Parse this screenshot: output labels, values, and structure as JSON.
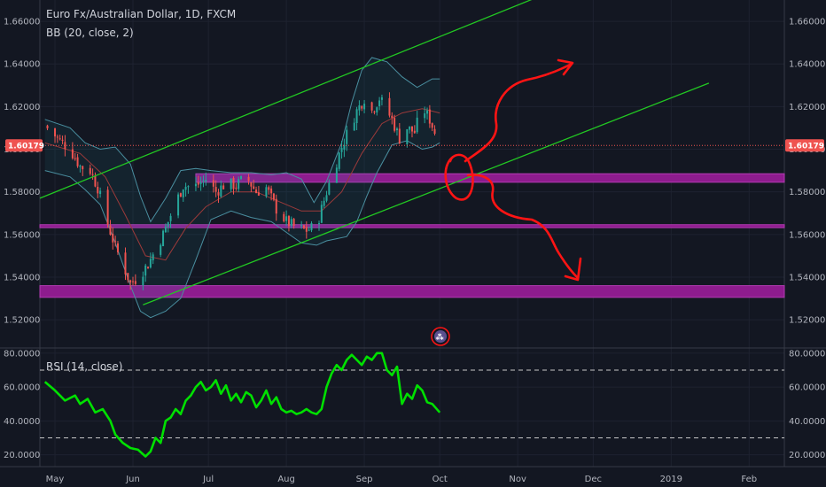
{
  "chart_data": {
    "type": "candlestick",
    "title": "Euro Fx/Australian Dollar, 1D, FXCM",
    "indicator": "BB (20, close, 2)",
    "rsi_label": "RSI (14, close)",
    "y_ticks": [
      "1.66000",
      "1.64000",
      "1.62000",
      "1.60000",
      "1.58000",
      "1.56000",
      "1.54000",
      "1.52000"
    ],
    "y_tick_values": [
      1.66,
      1.64,
      1.62,
      1.6,
      1.58,
      1.56,
      1.54,
      1.52
    ],
    "ylim": [
      1.508,
      1.67
    ],
    "last_price": "1.60179",
    "last_price_value": 1.60179,
    "rsi_ticks": [
      "80.0000",
      "60.0000",
      "40.0000",
      "20.0000"
    ],
    "rsi_tick_values": [
      80,
      60,
      40,
      20
    ],
    "rsi_ylim": [
      13,
      82
    ],
    "rsi_levels": [
      70,
      30
    ],
    "x_labels": [
      "May",
      "Jun",
      "Jul",
      "Aug",
      "Sep",
      "Oct",
      "Nov",
      "Dec",
      "2019",
      "Feb"
    ],
    "x_label_days": [
      0,
      31,
      61,
      92,
      123,
      153,
      184,
      214,
      245,
      276
    ],
    "xlim_days": [
      -6,
      290
    ],
    "last_day": 153,
    "price_path": [
      [
        -4,
        1.611
      ],
      [
        2,
        1.604
      ],
      [
        6,
        1.6
      ],
      [
        10,
        1.592
      ],
      [
        14,
        1.59
      ],
      [
        17,
        1.582
      ],
      [
        21,
        1.565
      ],
      [
        24,
        1.554
      ],
      [
        27,
        1.546
      ],
      [
        30,
        1.537
      ],
      [
        33,
        1.54
      ],
      [
        37,
        1.546
      ],
      [
        40,
        1.553
      ],
      [
        43,
        1.56
      ],
      [
        47,
        1.572
      ],
      [
        51,
        1.583
      ],
      [
        55,
        1.582
      ],
      [
        60,
        1.586
      ],
      [
        64,
        1.58
      ],
      [
        68,
        1.584
      ],
      [
        72,
        1.583
      ],
      [
        76,
        1.587
      ],
      [
        80,
        1.58
      ],
      [
        84,
        1.582
      ],
      [
        88,
        1.572
      ],
      [
        92,
        1.566
      ],
      [
        96,
        1.563
      ],
      [
        100,
        1.562
      ],
      [
        104,
        1.564
      ],
      [
        106,
        1.572
      ],
      [
        108,
        1.58
      ],
      [
        111,
        1.591
      ],
      [
        114,
        1.601
      ],
      [
        117,
        1.61
      ],
      [
        120,
        1.618
      ],
      [
        123,
        1.624
      ],
      [
        126,
        1.618
      ],
      [
        129,
        1.624
      ],
      [
        131,
        1.62
      ],
      [
        134,
        1.614
      ],
      [
        137,
        1.605
      ],
      [
        140,
        1.61
      ],
      [
        143,
        1.608
      ],
      [
        146,
        1.62
      ],
      [
        149,
        1.614
      ],
      [
        151,
        1.608
      ],
      [
        153,
        1.602
      ]
    ],
    "rsi_path": [
      [
        -4,
        63
      ],
      [
        0,
        58
      ],
      [
        4,
        52
      ],
      [
        8,
        55
      ],
      [
        10,
        50
      ],
      [
        13,
        53
      ],
      [
        16,
        45
      ],
      [
        19,
        47
      ],
      [
        22,
        40
      ],
      [
        24,
        32
      ],
      [
        27,
        27
      ],
      [
        30,
        24
      ],
      [
        33,
        23
      ],
      [
        36,
        19
      ],
      [
        38,
        22
      ],
      [
        40,
        30
      ],
      [
        42,
        27
      ],
      [
        44,
        40
      ],
      [
        46,
        42
      ],
      [
        48,
        47
      ],
      [
        50,
        44
      ],
      [
        52,
        52
      ],
      [
        54,
        55
      ],
      [
        56,
        60
      ],
      [
        58,
        63
      ],
      [
        60,
        58
      ],
      [
        62,
        60
      ],
      [
        64,
        64
      ],
      [
        66,
        56
      ],
      [
        68,
        61
      ],
      [
        70,
        52
      ],
      [
        72,
        56
      ],
      [
        74,
        51
      ],
      [
        76,
        57
      ],
      [
        78,
        55
      ],
      [
        80,
        48
      ],
      [
        82,
        52
      ],
      [
        84,
        58
      ],
      [
        86,
        50
      ],
      [
        88,
        54
      ],
      [
        90,
        47
      ],
      [
        92,
        45
      ],
      [
        94,
        46
      ],
      [
        96,
        44
      ],
      [
        98,
        45
      ],
      [
        100,
        47
      ],
      [
        102,
        45
      ],
      [
        104,
        44
      ],
      [
        106,
        47
      ],
      [
        108,
        60
      ],
      [
        110,
        68
      ],
      [
        112,
        73
      ],
      [
        114,
        70
      ],
      [
        116,
        76
      ],
      [
        118,
        79
      ],
      [
        120,
        76
      ],
      [
        122,
        73
      ],
      [
        124,
        78
      ],
      [
        126,
        76
      ],
      [
        128,
        80
      ],
      [
        130,
        80
      ],
      [
        132,
        70
      ],
      [
        134,
        67
      ],
      [
        136,
        72
      ],
      [
        138,
        50
      ],
      [
        140,
        56
      ],
      [
        142,
        53
      ],
      [
        144,
        61
      ],
      [
        146,
        58
      ],
      [
        148,
        51
      ],
      [
        150,
        50
      ],
      [
        153,
        45
      ]
    ],
    "bb_upper": [
      [
        -4,
        1.614
      ],
      [
        6,
        1.61
      ],
      [
        12,
        1.603
      ],
      [
        18,
        1.6
      ],
      [
        24,
        1.601
      ],
      [
        30,
        1.593
      ],
      [
        34,
        1.578
      ],
      [
        38,
        1.566
      ],
      [
        44,
        1.577
      ],
      [
        50,
        1.59
      ],
      [
        56,
        1.591
      ],
      [
        62,
        1.59
      ],
      [
        70,
        1.589
      ],
      [
        78,
        1.589
      ],
      [
        86,
        1.588
      ],
      [
        92,
        1.589
      ],
      [
        98,
        1.586
      ],
      [
        103,
        1.575
      ],
      [
        108,
        1.585
      ],
      [
        114,
        1.603
      ],
      [
        118,
        1.622
      ],
      [
        122,
        1.637
      ],
      [
        126,
        1.643
      ],
      [
        132,
        1.641
      ],
      [
        138,
        1.634
      ],
      [
        144,
        1.629
      ],
      [
        150,
        1.633
      ],
      [
        153,
        1.633
      ]
    ],
    "bb_lower": [
      [
        -4,
        1.59
      ],
      [
        6,
        1.587
      ],
      [
        12,
        1.581
      ],
      [
        18,
        1.574
      ],
      [
        24,
        1.556
      ],
      [
        30,
        1.536
      ],
      [
        34,
        1.524
      ],
      [
        38,
        1.521
      ],
      [
        44,
        1.524
      ],
      [
        50,
        1.53
      ],
      [
        56,
        1.548
      ],
      [
        62,
        1.567
      ],
      [
        70,
        1.571
      ],
      [
        78,
        1.568
      ],
      [
        86,
        1.566
      ],
      [
        92,
        1.561
      ],
      [
        98,
        1.556
      ],
      [
        104,
        1.555
      ],
      [
        108,
        1.557
      ],
      [
        112,
        1.558
      ],
      [
        116,
        1.559
      ],
      [
        120,
        1.566
      ],
      [
        124,
        1.578
      ],
      [
        128,
        1.589
      ],
      [
        134,
        1.602
      ],
      [
        140,
        1.604
      ],
      [
        146,
        1.6
      ],
      [
        150,
        1.601
      ],
      [
        153,
        1.603
      ]
    ],
    "bb_basis": [
      [
        -4,
        1.603
      ],
      [
        10,
        1.598
      ],
      [
        20,
        1.587
      ],
      [
        28,
        1.569
      ],
      [
        36,
        1.55
      ],
      [
        44,
        1.548
      ],
      [
        52,
        1.563
      ],
      [
        60,
        1.573
      ],
      [
        70,
        1.58
      ],
      [
        80,
        1.58
      ],
      [
        90,
        1.575
      ],
      [
        98,
        1.571
      ],
      [
        106,
        1.571
      ],
      [
        114,
        1.58
      ],
      [
        122,
        1.598
      ],
      [
        130,
        1.612
      ],
      [
        138,
        1.617
      ],
      [
        146,
        1.619
      ],
      [
        153,
        1.617
      ]
    ],
    "channel_upper": [
      [
        -6,
        1.577
      ],
      [
        210,
        1.68
      ]
    ],
    "channel_lower": [
      [
        35,
        1.527
      ],
      [
        260,
        1.631
      ]
    ],
    "support_zones": [
      [
        1.5885,
        1.5845
      ],
      [
        1.5646,
        1.5632
      ],
      [
        1.536,
        1.5305
      ]
    ],
    "zone_start_days": [
      56,
      -6,
      -6
    ],
    "badge_label": "⁂",
    "colors": {
      "background": "#131722",
      "grid": "#1e2230",
      "up": "#26a69a",
      "down": "#ef5350",
      "bb": "#4a8fa0",
      "bb_fill": "rgba(33, 150, 160, 0.10)",
      "basis": "#9c3a3a",
      "channel": "#22c822",
      "zone": "#8e1c8e",
      "zone_edge": "#b23bb2",
      "rsi": "#00e000",
      "annotation": "#ff1414",
      "axis_text": "#b2b5be",
      "price_badge": "#ef5350"
    }
  }
}
